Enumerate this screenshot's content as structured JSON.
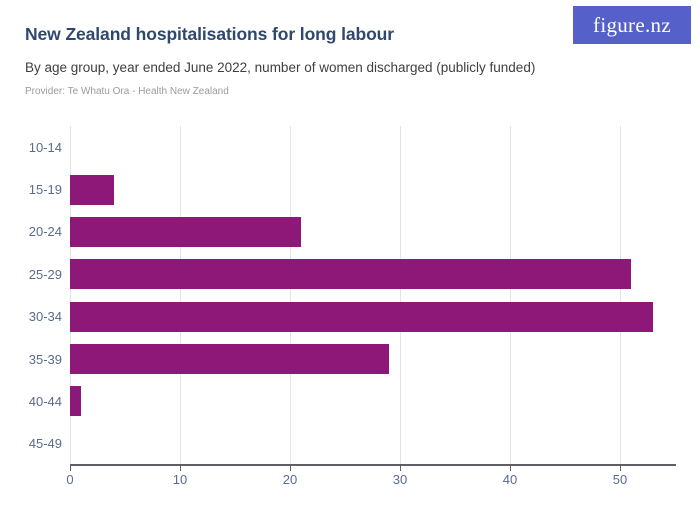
{
  "header": {
    "title": "New Zealand hospitalisations for long labour",
    "subtitle": "By age group, year ended June 2022, number of women discharged (publicly funded)",
    "provider": "Provider: Te Whatu Ora - Health New Zealand",
    "logo_text": "figure.nz"
  },
  "colors": {
    "bar": "#8E1877",
    "title_text": "#2F486E",
    "subtitle_text": "#3F3F3F",
    "provider_text": "#9B9B9B",
    "axis_label": "#5A6C8D",
    "gridline": "#E4E4E7",
    "axis_line": "#5E6066",
    "logo_background": "#5560C8",
    "logo_text_color": "#FFFFFF"
  },
  "chart_data": {
    "type": "bar",
    "orientation": "horizontal",
    "title": "New Zealand hospitalisations for long labour",
    "subtitle": "By age group, year ended June 2022, number of women discharged (publicly funded)",
    "categories": [
      "10-14",
      "15-19",
      "20-24",
      "25-29",
      "30-34",
      "35-39",
      "40-44",
      "45-49"
    ],
    "values": [
      0,
      4,
      21,
      51,
      53,
      29,
      1,
      0
    ],
    "xlabel": "",
    "ylabel": "",
    "xlim": [
      0,
      55
    ],
    "xticks": [
      0,
      10,
      20,
      30,
      40,
      50
    ],
    "grid": "vertical",
    "legend": "none",
    "bar_color": "#8E1877"
  }
}
